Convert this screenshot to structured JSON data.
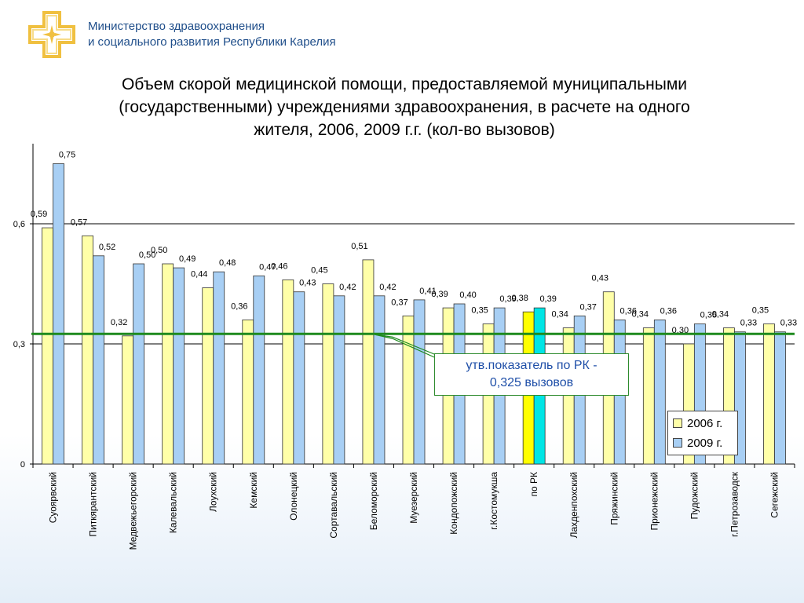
{
  "header": {
    "ministry_line1": "Министерство здравоохранения",
    "ministry_line2": "и социального развития Республики Карелия"
  },
  "colors": {
    "logo": "#f0c040",
    "ministry_text": "#1f4e8a",
    "series_2006": "#ffffa8",
    "series_2009": "#a8cff4",
    "highlight_2006": "#ffff00",
    "highlight_2009": "#00e5e5",
    "reference_line": "#1e8a1e",
    "callout_text": "#1f4fa8"
  },
  "callout": {
    "line1": "утв.показатель по РК -",
    "line2": "0,325 вызовов"
  },
  "chart_data": {
    "type": "bar",
    "title": "Объем скорой медицинской помощи, предоставляемой муниципальными (государственными) учреждениями здравоохранения, в расчете на одного жителя, 2006, 2009 г.г. (кол-во вызовов)",
    "title_lines": [
      "Объем скорой медицинской помощи, предоставляемой муниципальными",
      "(государственными) учреждениями здравоохранения, в расчете на одного",
      "жителя, 2006, 2009 г.г. (кол-во вызовов)"
    ],
    "categories": [
      "Суоярвский",
      "Питкярантский",
      "Медвежьегорский",
      "Калевальский",
      "Лоухский",
      "Кемский",
      "Олонецкий",
      "Сортавальский",
      "Беломорский",
      "Муезерский",
      "Кондопожский",
      "г.Костомукша",
      "по РК",
      "Лахденпохский",
      "Пряжинский",
      "Прионежский",
      "Пудожский",
      "г.Петрозаводск",
      "Сегежский"
    ],
    "series": [
      {
        "name": "2006 г.",
        "values": [
          0.59,
          0.57,
          0.32,
          0.5,
          0.44,
          0.36,
          0.46,
          0.45,
          0.51,
          0.37,
          0.39,
          0.35,
          0.38,
          0.34,
          0.43,
          0.34,
          0.3,
          0.34,
          0.35
        ]
      },
      {
        "name": "2009 г.",
        "values": [
          0.75,
          0.52,
          0.5,
          0.49,
          0.48,
          0.47,
          0.43,
          0.42,
          0.42,
          0.41,
          0.4,
          0.39,
          0.39,
          0.37,
          0.36,
          0.36,
          0.35,
          0.33,
          0.33
        ]
      }
    ],
    "highlight_category": "по РК",
    "reference_value": 0.325,
    "yticks": [
      "0",
      "0,3",
      "0,6"
    ],
    "ylim": [
      0,
      0.8
    ],
    "xlabel": "",
    "ylabel": "",
    "grid": true,
    "legend": "bottom-right"
  }
}
